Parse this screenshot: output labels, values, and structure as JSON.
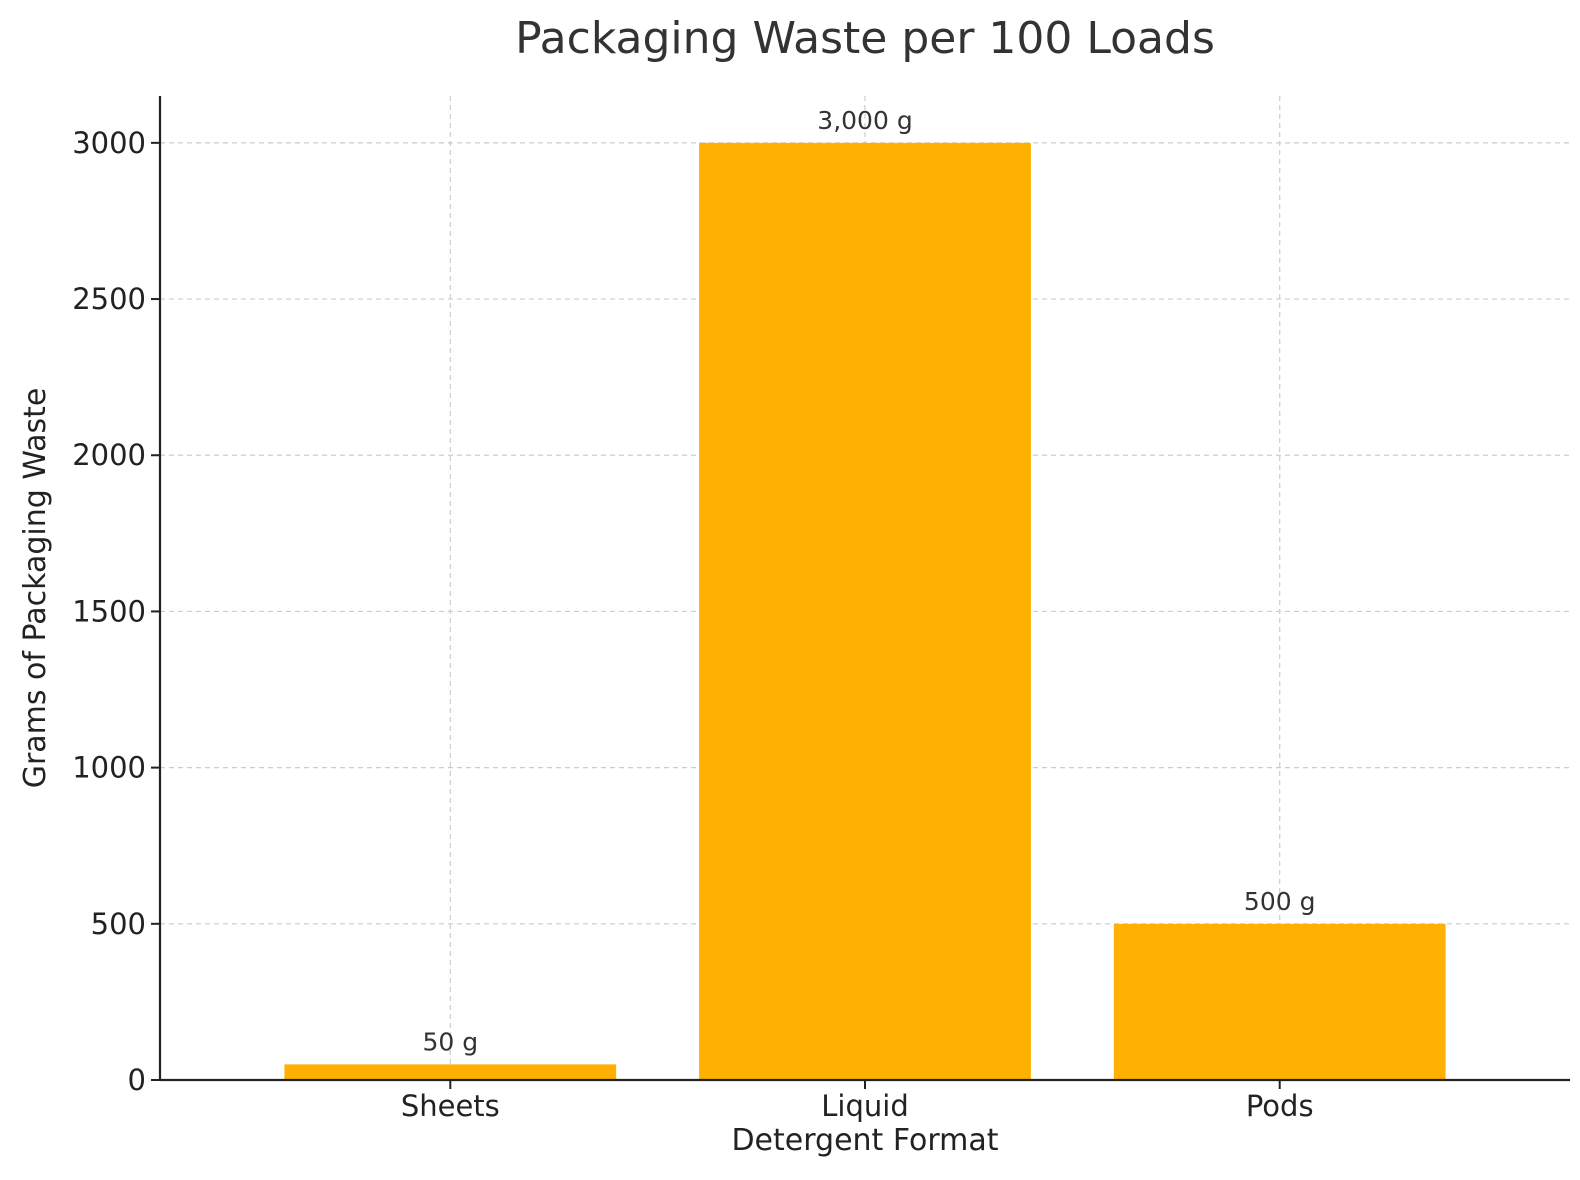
{
  "chart_data": {
    "type": "bar",
    "title": "Packaging Waste per 100 Loads",
    "xlabel": "Detergent Format",
    "ylabel": "Grams of Packaging Waste",
    "categories": [
      "Sheets",
      "Liquid",
      "Pods"
    ],
    "values": [
      50,
      3000,
      500
    ],
    "value_labels": [
      "50 g",
      "3,000 g",
      "500 g"
    ],
    "ylim": [
      0,
      3150
    ],
    "yticks": [
      0,
      500,
      1000,
      1500,
      2000,
      2500,
      3000
    ],
    "grid": true,
    "bar_color": "#FFB000"
  }
}
